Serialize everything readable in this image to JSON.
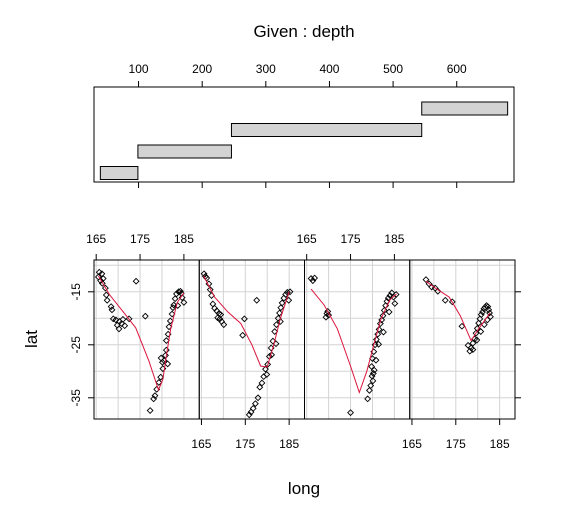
{
  "chart_data": [
    {
      "type": "bar",
      "title": "Given : depth",
      "xlabel": "",
      "ylabel": "",
      "xlim": [
        30,
        690
      ],
      "x_ticks": [
        100,
        200,
        300,
        400,
        500,
        600
      ],
      "grid": false,
      "values": [
        {
          "from": 40,
          "to": 99
        },
        {
          "from": 99,
          "to": 246
        },
        {
          "from": 246,
          "to": 545
        },
        {
          "from": 545,
          "to": 680
        }
      ],
      "colors": {
        "fill": "#d3d3d3",
        "stroke": "#000000"
      }
    },
    {
      "type": "scatter",
      "title": "",
      "xlabel": "long",
      "ylabel": "lat",
      "xlim": [
        164.5,
        188.5
      ],
      "ylim": [
        -39,
        -9
      ],
      "x_ticks": [
        165,
        175,
        185
      ],
      "y_ticks": [
        -15,
        -25,
        -35
      ],
      "grid": true,
      "colors": {
        "points": "#000000",
        "smooth": "#dc143c",
        "grid": "#d3d3d3"
      },
      "series": [
        {
          "points": [
            [
              165.5,
              -12.2
            ],
            [
              166.0,
              -12.9
            ],
            [
              166.4,
              -13.4
            ],
            [
              165.7,
              -11.3
            ],
            [
              166.3,
              -11.6
            ],
            [
              166.6,
              -12.5
            ],
            [
              167.1,
              -14.3
            ],
            [
              167.3,
              -15.6
            ],
            [
              167.5,
              -16.6
            ],
            [
              168.4,
              -17.8
            ],
            [
              168.6,
              -18.4
            ],
            [
              168.9,
              -20.1
            ],
            [
              169.5,
              -20.3
            ],
            [
              169.8,
              -21.3
            ],
            [
              170.3,
              -20.6
            ],
            [
              170.8,
              -21.0
            ],
            [
              171.1,
              -20.2
            ],
            [
              171.5,
              -21.4
            ],
            [
              170.2,
              -22.0
            ],
            [
              172.5,
              -20.1
            ],
            [
              174.1,
              -13.0
            ],
            [
              176.2,
              -19.6
            ],
            [
              177.3,
              -37.4
            ],
            [
              178.1,
              -35.2
            ],
            [
              178.4,
              -34.6
            ],
            [
              178.8,
              -33.4
            ],
            [
              179.3,
              -32.1
            ],
            [
              179.7,
              -31.1
            ],
            [
              180.2,
              -29.5
            ],
            [
              180.5,
              -28.0
            ],
            [
              180.8,
              -27.0
            ],
            [
              181.0,
              -26.0
            ],
            [
              181.0,
              -24.2
            ],
            [
              181.4,
              -23.0
            ],
            [
              181.6,
              -21.6
            ],
            [
              181.9,
              -20.5
            ],
            [
              182.3,
              -19.2
            ],
            [
              182.5,
              -18.0
            ],
            [
              182.7,
              -17.5
            ],
            [
              183.0,
              -16.3
            ],
            [
              183.3,
              -15.4
            ],
            [
              183.8,
              -15.0
            ],
            [
              184.2,
              -14.9
            ],
            [
              184.6,
              -16.1
            ],
            [
              185.0,
              -17.0
            ],
            [
              183.6,
              -17.6
            ],
            [
              184.4,
              -15.3
            ],
            [
              180.1,
              -28.3
            ],
            [
              179.8,
              -27.5
            ],
            [
              181.3,
              -28.6
            ]
          ],
          "smooth": [
            [
              165.5,
              -12.0
            ],
            [
              168.0,
              -15.5
            ],
            [
              171.0,
              -18.6
            ],
            [
              174.0,
              -21.8
            ],
            [
              177.0,
              -28.0
            ],
            [
              179.2,
              -33.5
            ],
            [
              180.2,
              -31.5
            ],
            [
              181.0,
              -27.0
            ],
            [
              182.0,
              -22.0
            ],
            [
              183.5,
              -17.0
            ],
            [
              185.0,
              -15.2
            ]
          ]
        },
        {
          "points": [
            [
              165.6,
              -11.6
            ],
            [
              165.9,
              -12.1
            ],
            [
              166.2,
              -12.4
            ],
            [
              166.7,
              -13.5
            ],
            [
              167.0,
              -14.6
            ],
            [
              167.3,
              -15.7
            ],
            [
              167.6,
              -17.3
            ],
            [
              168.0,
              -18.1
            ],
            [
              168.5,
              -18.6
            ],
            [
              169.0,
              -19.1
            ],
            [
              169.4,
              -19.3
            ],
            [
              168.7,
              -19.9
            ],
            [
              169.6,
              -20.6
            ],
            [
              169.2,
              -20.1
            ],
            [
              170.1,
              -21.2
            ],
            [
              174.4,
              -23.2
            ],
            [
              174.8,
              -20.1
            ],
            [
              177.6,
              -16.6
            ],
            [
              175.9,
              -38.2
            ],
            [
              176.3,
              -37.7
            ],
            [
              176.8,
              -37.0
            ],
            [
              177.3,
              -36.1
            ],
            [
              177.9,
              -35.0
            ],
            [
              178.3,
              -33.0
            ],
            [
              178.8,
              -32.2
            ],
            [
              179.2,
              -31.0
            ],
            [
              179.6,
              -29.6
            ],
            [
              180.1,
              -28.7
            ],
            [
              180.5,
              -27.2
            ],
            [
              180.9,
              -25.6
            ],
            [
              181.3,
              -24.3
            ],
            [
              181.7,
              -22.5
            ],
            [
              182.1,
              -21.2
            ],
            [
              182.5,
              -20.0
            ],
            [
              182.8,
              -19.0
            ],
            [
              183.1,
              -18.0
            ],
            [
              183.4,
              -17.1
            ],
            [
              183.8,
              -16.2
            ],
            [
              184.2,
              -15.5
            ],
            [
              184.6,
              -15.1
            ],
            [
              184.9,
              -16.6
            ],
            [
              185.2,
              -15.0
            ],
            [
              183.0,
              -20.6
            ],
            [
              182.0,
              -24.8
            ],
            [
              181.0,
              -26.9
            ],
            [
              179.9,
              -30.6
            ]
          ],
          "smooth": [
            [
              165.5,
              -12.0
            ],
            [
              168.0,
              -16.0
            ],
            [
              171.0,
              -18.8
            ],
            [
              174.0,
              -21.0
            ],
            [
              176.5,
              -25.0
            ],
            [
              178.5,
              -29.0
            ],
            [
              180.0,
              -29.2
            ],
            [
              181.5,
              -25.0
            ],
            [
              183.0,
              -20.0
            ],
            [
              185.0,
              -15.0
            ]
          ]
        },
        {
          "points": [
            [
              166.0,
              -12.5
            ],
            [
              166.4,
              -12.9
            ],
            [
              166.8,
              -12.4
            ],
            [
              169.6,
              -19.1
            ],
            [
              169.8,
              -18.7
            ],
            [
              170.0,
              -19.4
            ],
            [
              169.4,
              -19.8
            ],
            [
              175.0,
              -37.8
            ],
            [
              178.9,
              -35.2
            ],
            [
              179.3,
              -33.6
            ],
            [
              179.6,
              -32.7
            ],
            [
              180.1,
              -31.8
            ],
            [
              180.2,
              -30.4
            ],
            [
              179.8,
              -29.1
            ],
            [
              180.0,
              -27.6
            ],
            [
              180.3,
              -26.3
            ],
            [
              180.6,
              -25.0
            ],
            [
              180.9,
              -24.0
            ],
            [
              181.2,
              -23.0
            ],
            [
              181.5,
              -22.1
            ],
            [
              181.8,
              -21.0
            ],
            [
              182.1,
              -20.3
            ],
            [
              182.4,
              -19.5
            ],
            [
              182.7,
              -18.5
            ],
            [
              183.0,
              -17.6
            ],
            [
              183.3,
              -16.8
            ],
            [
              183.6,
              -16.2
            ],
            [
              184.0,
              -15.7
            ],
            [
              184.4,
              -15.2
            ],
            [
              184.8,
              -16.0
            ],
            [
              185.1,
              -17.2
            ],
            [
              185.4,
              -15.5
            ],
            [
              183.8,
              -18.8
            ],
            [
              182.5,
              -22.6
            ],
            [
              181.4,
              -24.9
            ],
            [
              180.8,
              -27.9
            ],
            [
              180.4,
              -29.8
            ],
            [
              179.9,
              -30.9
            ]
          ],
          "smooth": [
            [
              166.0,
              -14.5
            ],
            [
              169.0,
              -17.5
            ],
            [
              172.0,
              -22.0
            ],
            [
              175.0,
              -29.0
            ],
            [
              177.0,
              -34.0
            ],
            [
              178.7,
              -30.0
            ],
            [
              180.3,
              -25.0
            ],
            [
              182.0,
              -20.0
            ],
            [
              184.0,
              -16.5
            ],
            [
              185.5,
              -15.4
            ]
          ]
        },
        {
          "points": [
            [
              168.2,
              -12.7
            ],
            [
              168.9,
              -13.5
            ],
            [
              169.5,
              -14.1
            ],
            [
              170.3,
              -14.3
            ],
            [
              170.9,
              -14.9
            ],
            [
              172.6,
              -16.6
            ],
            [
              174.2,
              -16.9
            ],
            [
              176.4,
              -21.5
            ],
            [
              177.8,
              -25.1
            ],
            [
              178.2,
              -26.2
            ],
            [
              178.5,
              -25.6
            ],
            [
              178.9,
              -24.7
            ],
            [
              179.3,
              -23.9
            ],
            [
              179.6,
              -22.8
            ],
            [
              179.9,
              -21.9
            ],
            [
              180.2,
              -20.9
            ],
            [
              180.5,
              -20.1
            ],
            [
              180.8,
              -19.3
            ],
            [
              181.1,
              -18.8
            ],
            [
              181.4,
              -18.2
            ],
            [
              181.7,
              -17.9
            ],
            [
              182.0,
              -17.6
            ],
            [
              182.3,
              -17.8
            ],
            [
              182.5,
              -18.4
            ],
            [
              182.7,
              -19.0
            ],
            [
              182.9,
              -19.7
            ],
            [
              182.2,
              -20.3
            ],
            [
              181.5,
              -21.2
            ],
            [
              180.7,
              -22.5
            ],
            [
              179.8,
              -24.1
            ],
            [
              178.9,
              -25.9
            ]
          ],
          "smooth": [
            [
              168.2,
              -13.0
            ],
            [
              170.5,
              -14.4
            ],
            [
              173.5,
              -16.0
            ],
            [
              176.0,
              -19.5
            ],
            [
              178.5,
              -24.2
            ],
            [
              180.2,
              -22.0
            ],
            [
              181.5,
              -20.5
            ],
            [
              182.8,
              -19.0
            ]
          ]
        }
      ]
    }
  ]
}
